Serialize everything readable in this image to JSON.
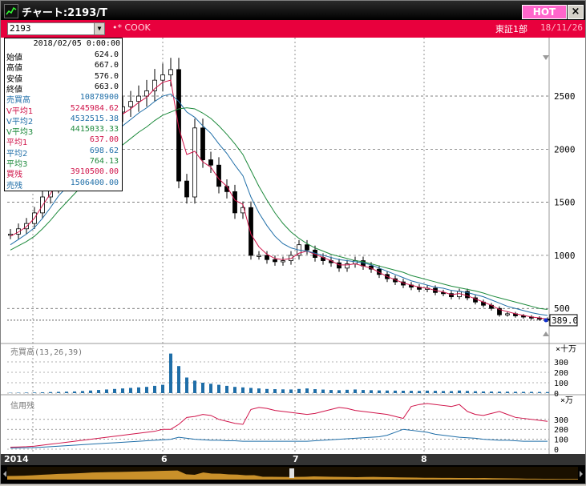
{
  "window": {
    "title": "チャート:2193/T",
    "hot_label": "HOT",
    "close_glyph": "×"
  },
  "toolbar": {
    "code_value": "2193",
    "cook_label": "•* COOK",
    "market_label": "東証1部",
    "date_label": "18/11/26"
  },
  "info": {
    "date": "2018/02/05 0:00:00",
    "rows": [
      {
        "label": "始値",
        "value": "624.0",
        "color": "#000000"
      },
      {
        "label": "高値",
        "value": "667.0",
        "color": "#000000"
      },
      {
        "label": "安値",
        "value": "576.0",
        "color": "#000000"
      },
      {
        "label": "終値",
        "value": "663.0",
        "color": "#000000"
      },
      {
        "label": "売買高",
        "value": "10878900",
        "color": "#1f6ea8"
      },
      {
        "label": "V平均1",
        "value": "5245984.62",
        "color": "#d0144a"
      },
      {
        "label": "V平均2",
        "value": "4532515.38",
        "color": "#1f6ea8"
      },
      {
        "label": "V平均3",
        "value": "4415033.33",
        "color": "#1d8a3c"
      },
      {
        "label": "平均1",
        "value": "637.00",
        "color": "#d0144a"
      },
      {
        "label": "平均2",
        "value": "698.62",
        "color": "#1f6ea8"
      },
      {
        "label": "平均3",
        "value": "764.13",
        "color": "#1d8a3c"
      },
      {
        "label": "買残",
        "value": "3910500.00",
        "color": "#d0144a"
      },
      {
        "label": "売残",
        "value": "1506400.00",
        "color": "#1f6ea8"
      }
    ]
  },
  "price_axis": {
    "ticks": [
      "2500",
      "2000",
      "1500",
      "1000",
      "500"
    ],
    "current_price": "389.0"
  },
  "volume_panel": {
    "label": "売買高(13,26,39)",
    "unit": "×十万",
    "ticks": [
      "300",
      "200",
      "100",
      "0"
    ]
  },
  "margin_panel": {
    "label": "信用残",
    "unit": "×万",
    "ticks": [
      "300",
      "200",
      "100",
      "0"
    ]
  },
  "time_axis": {
    "labels": [
      "2014",
      "6",
      "7",
      "8"
    ]
  },
  "colors": {
    "accent": "#e8003d",
    "hot": "#ff66cc",
    "avg1": "#d0144a",
    "avg2": "#1f6ea8",
    "avg3": "#1d8a3c",
    "volume": "#1f6ea8"
  },
  "chart_data": [
    {
      "type": "line",
      "name_ja": "price",
      "ylim": [
        200,
        2900
      ],
      "x": [
        0,
        10,
        20,
        30,
        40,
        50,
        60,
        70,
        80,
        90,
        100,
        110,
        120,
        130,
        140,
        150,
        160,
        170,
        180,
        190,
        200,
        210,
        220,
        230,
        240,
        250,
        260,
        270,
        280,
        290,
        300,
        310,
        320,
        330,
        340,
        350,
        360,
        370,
        380,
        390,
        400,
        410,
        420,
        430,
        440,
        450,
        460,
        470,
        480,
        490,
        500,
        510,
        520,
        530,
        540,
        550,
        560,
        570,
        580,
        590,
        600,
        610,
        620,
        630,
        640,
        650,
        660,
        665
      ],
      "close": [
        1200,
        1250,
        1300,
        1400,
        1550,
        1650,
        1800,
        1850,
        1950,
        2050,
        2200,
        2250,
        2300,
        2350,
        2400,
        2450,
        2500,
        2550,
        2650,
        2700,
        2750,
        1700,
        1550,
        2200,
        1900,
        1850,
        1650,
        1600,
        1400,
        1450,
        1000,
        1000,
        960,
        940,
        950,
        1000,
        1100,
        1050,
        980,
        950,
        930,
        880,
        920,
        950,
        900,
        870,
        820,
        780,
        750,
        720,
        700,
        680,
        690,
        650,
        640,
        610,
        660,
        600,
        560,
        530,
        500,
        440,
        450,
        430,
        420,
        410,
        400,
        389
      ],
      "avg1": [
        1180,
        1220,
        1270,
        1350,
        1470,
        1580,
        1710,
        1780,
        1870,
        1960,
        2080,
        2150,
        2210,
        2270,
        2330,
        2380,
        2440,
        2490,
        2570,
        2630,
        2650,
        2200,
        1950,
        1980,
        1880,
        1830,
        1720,
        1650,
        1520,
        1480,
        1200,
        1080,
        1010,
        970,
        960,
        970,
        1020,
        1040,
        1010,
        980,
        950,
        910,
        910,
        920,
        900,
        880,
        840,
        800,
        770,
        740,
        720,
        700,
        690,
        670,
        655,
        630,
        640,
        620,
        590,
        560,
        530,
        490,
        470,
        450,
        435,
        420,
        410,
        400
      ],
      "avg2": [
        1100,
        1150,
        1200,
        1260,
        1350,
        1450,
        1560,
        1640,
        1730,
        1820,
        1920,
        2000,
        2080,
        2150,
        2220,
        2280,
        2340,
        2390,
        2450,
        2500,
        2520,
        2450,
        2350,
        2300,
        2220,
        2150,
        2050,
        1960,
        1850,
        1750,
        1550,
        1400,
        1280,
        1180,
        1110,
        1070,
        1050,
        1040,
        1020,
        1000,
        980,
        960,
        950,
        940,
        930,
        910,
        880,
        850,
        820,
        790,
        760,
        740,
        720,
        700,
        690,
        670,
        660,
        650,
        630,
        610,
        580,
        550,
        520,
        500,
        480,
        460,
        445,
        435
      ],
      "avg3": [
        1050,
        1090,
        1130,
        1180,
        1250,
        1330,
        1420,
        1500,
        1580,
        1660,
        1750,
        1830,
        1900,
        1970,
        2040,
        2100,
        2160,
        2210,
        2270,
        2320,
        2350,
        2380,
        2390,
        2380,
        2340,
        2290,
        2220,
        2140,
        2050,
        1950,
        1800,
        1650,
        1520,
        1400,
        1300,
        1220,
        1160,
        1110,
        1070,
        1040,
        1010,
        990,
        970,
        950,
        940,
        920,
        900,
        880,
        860,
        840,
        810,
        790,
        770,
        750,
        730,
        710,
        695,
        680,
        665,
        645,
        620,
        600,
        580,
        560,
        540,
        520,
        500,
        490
      ]
    },
    {
      "type": "bar",
      "name_ja": "volume",
      "ylim": [
        0,
        400
      ],
      "values": [
        3,
        4,
        5,
        6,
        8,
        10,
        12,
        14,
        16,
        20,
        25,
        30,
        35,
        40,
        45,
        50,
        55,
        60,
        70,
        80,
        380,
        260,
        150,
        120,
        100,
        90,
        80,
        70,
        60,
        55,
        50,
        45,
        40,
        38,
        36,
        35,
        40,
        45,
        38,
        34,
        30,
        28,
        32,
        35,
        30,
        28,
        26,
        25,
        24,
        23,
        22,
        21,
        24,
        22,
        20,
        19,
        25,
        21,
        18,
        16,
        15,
        14,
        14,
        13,
        12,
        12,
        11,
        10
      ]
    },
    {
      "type": "line",
      "name_ja": "margin",
      "ylim": [
        0,
        500
      ],
      "buy": [
        20,
        22,
        25,
        30,
        40,
        50,
        60,
        70,
        80,
        90,
        100,
        110,
        120,
        130,
        140,
        150,
        160,
        170,
        180,
        200,
        200,
        250,
        320,
        330,
        350,
        340,
        300,
        280,
        260,
        250,
        400,
        420,
        410,
        390,
        380,
        370,
        360,
        350,
        360,
        380,
        400,
        420,
        410,
        390,
        380,
        370,
        360,
        350,
        330,
        310,
        430,
        450,
        460,
        450,
        440,
        430,
        450,
        380,
        350,
        340,
        360,
        380,
        350,
        320,
        310,
        300,
        290,
        280
      ],
      "sell": [
        10,
        12,
        14,
        16,
        20,
        25,
        30,
        35,
        40,
        45,
        50,
        55,
        60,
        65,
        70,
        75,
        80,
        85,
        90,
        95,
        100,
        120,
        110,
        100,
        95,
        90,
        90,
        85,
        85,
        80,
        80,
        80,
        80,
        80,
        80,
        80,
        80,
        80,
        85,
        90,
        95,
        100,
        105,
        110,
        115,
        120,
        125,
        140,
        170,
        200,
        190,
        180,
        170,
        150,
        140,
        130,
        120,
        115,
        110,
        100,
        95,
        90,
        90,
        85,
        80,
        80,
        80,
        80
      ]
    }
  ]
}
